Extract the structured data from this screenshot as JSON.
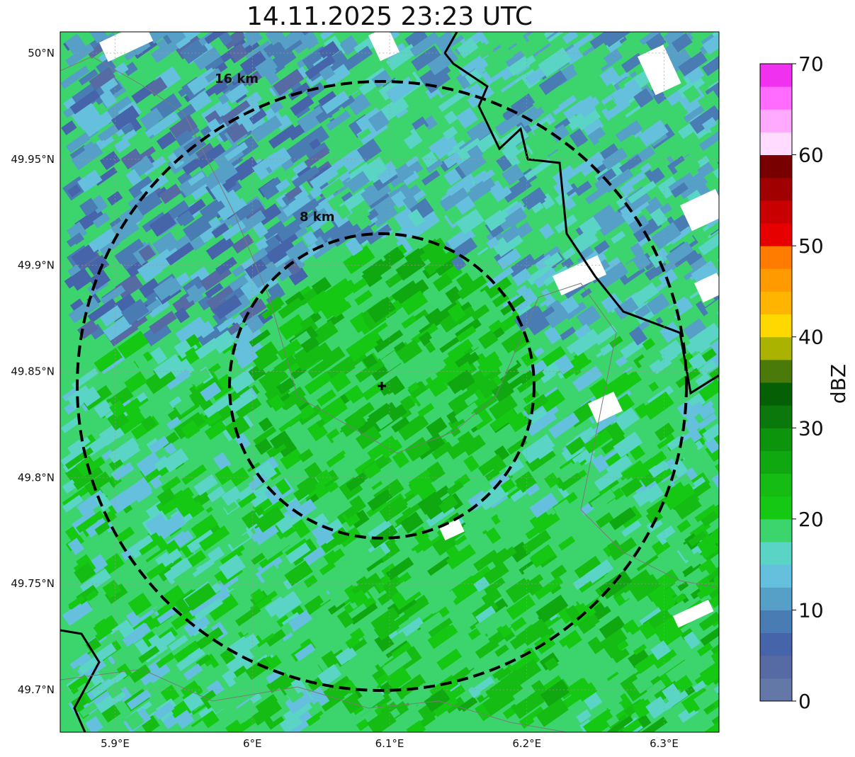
{
  "title": "14.11.2025 23:23 UTC",
  "axes": {
    "lat_ticks": [
      {
        "value": 50.0,
        "label": "50°N"
      },
      {
        "value": 49.95,
        "label": "49.95°N"
      },
      {
        "value": 49.9,
        "label": "49.9°N"
      },
      {
        "value": 49.85,
        "label": "49.85°N"
      },
      {
        "value": 49.8,
        "label": "49.8°N"
      },
      {
        "value": 49.75,
        "label": "49.75°N"
      },
      {
        "value": 49.7,
        "label": "49.7°N"
      }
    ],
    "lon_ticks": [
      {
        "value": 5.9,
        "label": "5.9°E"
      },
      {
        "value": 6.0,
        "label": "6°E"
      },
      {
        "value": 6.1,
        "label": "6.1°E"
      },
      {
        "value": 6.2,
        "label": "6.2°E"
      },
      {
        "value": 6.3,
        "label": "6.3°E"
      }
    ],
    "lon_range": [
      5.86,
      6.34
    ],
    "lat_range": [
      49.68,
      50.01
    ],
    "gridlines": true
  },
  "radar_center": {
    "lon": 6.094,
    "lat": 49.843,
    "marker": "+"
  },
  "range_rings": [
    {
      "label": "8 km",
      "radius_km": 8,
      "style": "dashed"
    },
    {
      "label": "16 km",
      "radius_km": 16,
      "style": "dashed"
    }
  ],
  "colorbar": {
    "label": "dBZ",
    "min": 0,
    "max": 70,
    "ticks": [
      "0",
      "10",
      "20",
      "30",
      "40",
      "50",
      "60",
      "70"
    ],
    "colors": [
      "#6478a8",
      "#566aa4",
      "#4664aa",
      "#4a7cb4",
      "#56a0c8",
      "#64c0dc",
      "#5ad4c4",
      "#3cd46c",
      "#14c814",
      "#14bc14",
      "#10a810",
      "#0c940c",
      "#0a780a",
      "#055f05",
      "#4a7a0a",
      "#aab400",
      "#ffd800",
      "#ffb400",
      "#ff9a00",
      "#ff7c00",
      "#e60000",
      "#c80000",
      "#a00000",
      "#780000",
      "#ffdcff",
      "#ffaaff",
      "#ff6cff",
      "#f032f0"
    ]
  }
}
